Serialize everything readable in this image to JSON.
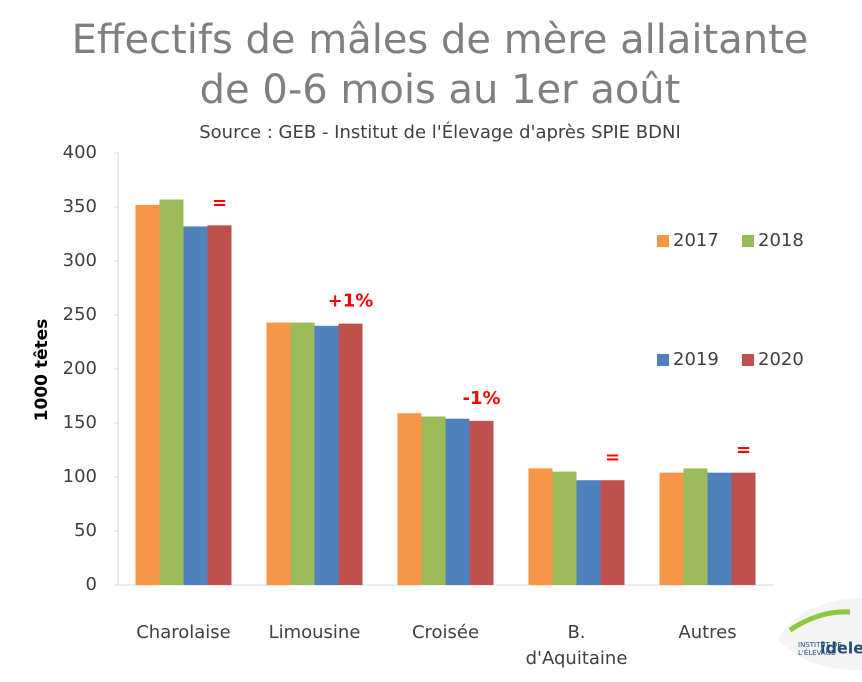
{
  "chart_data": {
    "type": "bar",
    "title": [
      "Effectifs de mâles de mère allaitante",
      "de 0-6 mois au 1er août"
    ],
    "subtitle": "Source : GEB - Institut de l'Élevage d'après SPIE BDNI",
    "ylabel": "1000 têtes",
    "categories": [
      "Charolaise",
      "Limousine",
      "Croisée",
      "B.\nd'Aquitaine",
      "Autres"
    ],
    "series": [
      {
        "name": "2017",
        "color": "#f79646",
        "values": [
          352,
          243,
          159,
          108,
          104
        ]
      },
      {
        "name": "2018",
        "color": "#9bbb59",
        "values": [
          357,
          243,
          156,
          105,
          108
        ]
      },
      {
        "name": "2019",
        "color": "#4f81bd",
        "values": [
          332,
          240,
          154,
          97,
          104
        ]
      },
      {
        "name": "2020",
        "color": "#c0504d",
        "values": [
          333,
          242,
          152,
          97,
          104
        ]
      }
    ],
    "annotations": [
      "=",
      "+1%",
      "-1%",
      "=",
      "="
    ],
    "ylim": [
      0,
      400
    ],
    "yticks": [
      0,
      50,
      100,
      150,
      200,
      250,
      300,
      350,
      400
    ],
    "grid": false,
    "legend": "right"
  },
  "logo": {
    "line1": "INSTITUT DE",
    "line2": "L'ÉLEVAGE",
    "brand": "idele"
  }
}
